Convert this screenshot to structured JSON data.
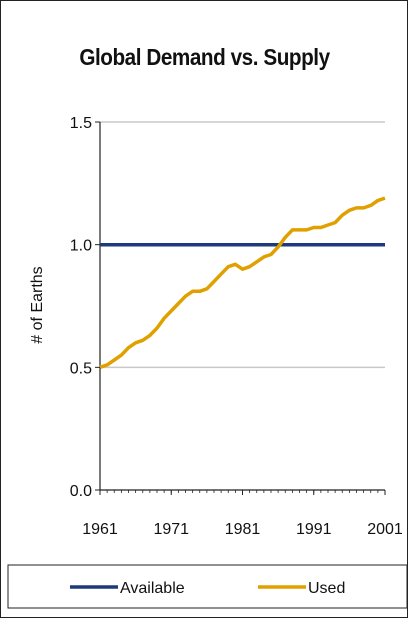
{
  "chart_data": {
    "type": "line",
    "title": "Global Demand vs. Supply",
    "xlabel": "",
    "ylabel": "# of Earths",
    "xlim": [
      1961,
      2001
    ],
    "ylim": [
      0,
      1.5
    ],
    "x_ticks": [
      "1961",
      "1971",
      "1981",
      "1991",
      "2001"
    ],
    "y_ticks": [
      "0.0",
      "0.5",
      "1.0",
      "1.5"
    ],
    "grid": "horizontal",
    "legend": "bottom",
    "series": [
      {
        "name": "Available",
        "color": "#1f3a7a",
        "x": [
          1961,
          2001
        ],
        "y": [
          1.0,
          1.0
        ]
      },
      {
        "name": "Used",
        "color": "#e0a000",
        "x": [
          1961,
          1962,
          1963,
          1964,
          1965,
          1966,
          1967,
          1968,
          1969,
          1970,
          1971,
          1972,
          1973,
          1974,
          1975,
          1976,
          1977,
          1978,
          1979,
          1980,
          1981,
          1982,
          1983,
          1984,
          1985,
          1986,
          1987,
          1988,
          1989,
          1990,
          1991,
          1992,
          1993,
          1994,
          1995,
          1996,
          1997,
          1998,
          1999,
          2000,
          2001
        ],
        "y": [
          0.5,
          0.51,
          0.53,
          0.55,
          0.58,
          0.6,
          0.61,
          0.63,
          0.66,
          0.7,
          0.73,
          0.76,
          0.79,
          0.81,
          0.81,
          0.82,
          0.85,
          0.88,
          0.91,
          0.92,
          0.9,
          0.91,
          0.93,
          0.95,
          0.96,
          0.99,
          1.03,
          1.06,
          1.06,
          1.06,
          1.07,
          1.07,
          1.08,
          1.09,
          1.12,
          1.14,
          1.15,
          1.15,
          1.16,
          1.18,
          1.19
        ]
      }
    ]
  }
}
